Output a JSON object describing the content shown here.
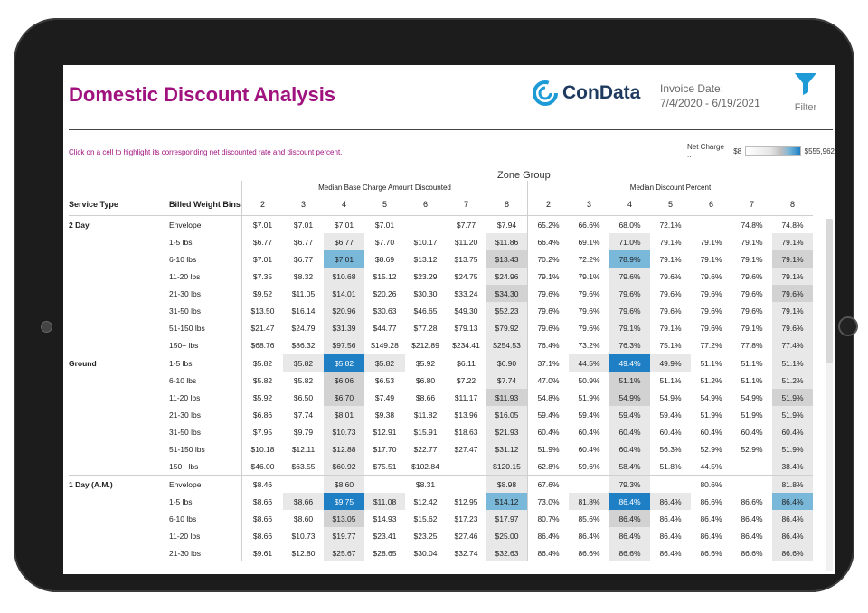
{
  "header": {
    "title": "Domestic Discount Analysis",
    "logo_text": "ConData",
    "invoice_label": "Invoice Date:",
    "invoice_range": "7/4/2020 - 6/19/2021",
    "filter_label": "Filter"
  },
  "hint": "Click on a cell to highlight its corresponding net discounted rate and discount percent.",
  "legend": {
    "label": "Net Charge ..",
    "min": "$8",
    "max": "$555,962"
  },
  "table": {
    "zone_group": "Zone Group",
    "group_base": "Median Base Charge Amount Discounted",
    "group_pct": "Median Discount Percent",
    "col_service": "Service Type",
    "col_bins": "Billed Weight Bins",
    "zones": [
      "2",
      "3",
      "4",
      "5",
      "6",
      "7",
      "8",
      "2",
      "3",
      "4",
      "5",
      "6",
      "7",
      "8"
    ],
    "rows": [
      {
        "svc": "2 Day",
        "bin": "Envelope",
        "vals": [
          "$7.01",
          "$7.01",
          "$7.01",
          "$7.01",
          "",
          "$7.77",
          "$7.94",
          "65.2%",
          "66.6%",
          "68.0%",
          "72.1%",
          "",
          "74.8%",
          "74.8%"
        ],
        "hl": [
          "",
          "",
          "",
          "",
          "",
          "",
          "",
          "",
          "",
          "",
          "",
          "",
          "",
          ""
        ]
      },
      {
        "svc": "",
        "bin": "1-5 lbs",
        "vals": [
          "$6.77",
          "$6.77",
          "$6.77",
          "$7.70",
          "$10.17",
          "$11.20",
          "$11.86",
          "66.4%",
          "69.1%",
          "71.0%",
          "79.1%",
          "79.1%",
          "79.1%",
          "79.1%"
        ],
        "hl": [
          "",
          "",
          "l",
          "",
          "",
          "",
          "l",
          "",
          "",
          "l",
          "",
          "",
          "",
          "l"
        ]
      },
      {
        "svc": "",
        "bin": "6-10 lbs",
        "vals": [
          "$7.01",
          "$6.77",
          "$7.01",
          "$8.69",
          "$13.12",
          "$13.75",
          "$13.43",
          "70.2%",
          "72.2%",
          "78.9%",
          "79.1%",
          "79.1%",
          "79.1%",
          "79.1%"
        ],
        "hl": [
          "",
          "",
          "b1",
          "",
          "",
          "",
          "m",
          "",
          "",
          "b1",
          "",
          "",
          "",
          "m"
        ]
      },
      {
        "svc": "",
        "bin": "11-20 lbs",
        "vals": [
          "$7.35",
          "$8.32",
          "$10.68",
          "$15.12",
          "$23.29",
          "$24.75",
          "$24.96",
          "79.1%",
          "79.1%",
          "79.6%",
          "79.6%",
          "79.6%",
          "79.6%",
          "79.1%"
        ],
        "hl": [
          "",
          "",
          "l",
          "",
          "",
          "",
          "l",
          "",
          "",
          "l",
          "",
          "",
          "",
          "l"
        ]
      },
      {
        "svc": "",
        "bin": "21-30 lbs",
        "vals": [
          "$9.52",
          "$11.05",
          "$14.01",
          "$20.26",
          "$30.30",
          "$33.24",
          "$34.30",
          "79.6%",
          "79.6%",
          "79.6%",
          "79.6%",
          "79.6%",
          "79.6%",
          "79.6%"
        ],
        "hl": [
          "",
          "",
          "l",
          "",
          "",
          "",
          "m",
          "",
          "",
          "l",
          "",
          "",
          "",
          "m"
        ]
      },
      {
        "svc": "",
        "bin": "31-50 lbs",
        "vals": [
          "$13.50",
          "$16.14",
          "$20.96",
          "$30.63",
          "$46.65",
          "$49.30",
          "$52.23",
          "79.6%",
          "79.6%",
          "79.6%",
          "79.6%",
          "79.6%",
          "79.6%",
          "79.1%"
        ],
        "hl": [
          "",
          "",
          "l",
          "",
          "",
          "",
          "l",
          "",
          "",
          "l",
          "",
          "",
          "",
          "l"
        ]
      },
      {
        "svc": "",
        "bin": "51-150 lbs",
        "vals": [
          "$21.47",
          "$24.79",
          "$31.39",
          "$44.77",
          "$77.28",
          "$79.13",
          "$79.92",
          "79.6%",
          "79.6%",
          "79.1%",
          "79.1%",
          "79.6%",
          "79.1%",
          "79.6%"
        ],
        "hl": [
          "",
          "",
          "l",
          "",
          "",
          "",
          "l",
          "",
          "",
          "l",
          "",
          "",
          "",
          "l"
        ]
      },
      {
        "svc": "",
        "bin": "150+ lbs",
        "vals": [
          "$68.76",
          "$86.32",
          "$97.56",
          "$149.28",
          "$212.89",
          "$234.41",
          "$254.53",
          "76.4%",
          "73.2%",
          "76.3%",
          "75.1%",
          "77.2%",
          "77.8%",
          "77.4%"
        ],
        "hl": [
          "",
          "",
          "l",
          "",
          "",
          "",
          "l",
          "",
          "",
          "l",
          "",
          "",
          "",
          "l"
        ]
      },
      {
        "svc": "Ground",
        "bin": "1-5 lbs",
        "vals": [
          "$5.82",
          "$5.82",
          "$5.82",
          "$5.82",
          "$5.92",
          "$6.11",
          "$6.90",
          "37.1%",
          "44.5%",
          "49.4%",
          "49.9%",
          "51.1%",
          "51.1%",
          "51.1%"
        ],
        "hl": [
          "",
          "l",
          "b2",
          "l",
          "",
          "",
          "l",
          "",
          "l",
          "b2",
          "l",
          "",
          "",
          "l"
        ]
      },
      {
        "svc": "",
        "bin": "6-10 lbs",
        "vals": [
          "$5.82",
          "$5.82",
          "$6.06",
          "$6.53",
          "$6.80",
          "$7.22",
          "$7.74",
          "47.0%",
          "50.9%",
          "51.1%",
          "51.1%",
          "51.2%",
          "51.1%",
          "51.2%"
        ],
        "hl": [
          "",
          "",
          "m",
          "",
          "",
          "",
          "l",
          "",
          "",
          "m",
          "",
          "",
          "",
          "l"
        ]
      },
      {
        "svc": "",
        "bin": "11-20 lbs",
        "vals": [
          "$5.92",
          "$6.50",
          "$6.70",
          "$7.49",
          "$8.66",
          "$11.17",
          "$11.93",
          "54.8%",
          "51.9%",
          "54.9%",
          "54.9%",
          "54.9%",
          "54.9%",
          "51.9%"
        ],
        "hl": [
          "",
          "",
          "m",
          "",
          "",
          "",
          "m",
          "",
          "",
          "m",
          "",
          "",
          "",
          "m"
        ]
      },
      {
        "svc": "",
        "bin": "21-30 lbs",
        "vals": [
          "$6.86",
          "$7.74",
          "$8.01",
          "$9.38",
          "$11.82",
          "$13.96",
          "$16.05",
          "59.4%",
          "59.4%",
          "59.4%",
          "59.4%",
          "51.9%",
          "51.9%",
          "51.9%"
        ],
        "hl": [
          "",
          "",
          "l",
          "",
          "",
          "",
          "l",
          "",
          "",
          "l",
          "",
          "",
          "",
          "l"
        ]
      },
      {
        "svc": "",
        "bin": "31-50 lbs",
        "vals": [
          "$7.95",
          "$9.79",
          "$10.73",
          "$12.91",
          "$15.91",
          "$18.63",
          "$21.93",
          "60.4%",
          "60.4%",
          "60.4%",
          "60.4%",
          "60.4%",
          "60.4%",
          "60.4%"
        ],
        "hl": [
          "",
          "",
          "l",
          "",
          "",
          "",
          "l",
          "",
          "",
          "l",
          "",
          "",
          "",
          "l"
        ]
      },
      {
        "svc": "",
        "bin": "51-150 lbs",
        "vals": [
          "$10.18",
          "$12.11",
          "$12.88",
          "$17.70",
          "$22.77",
          "$27.47",
          "$31.12",
          "51.9%",
          "60.4%",
          "60.4%",
          "56.3%",
          "52.9%",
          "52.9%",
          "51.9%"
        ],
        "hl": [
          "",
          "",
          "l",
          "",
          "",
          "",
          "l",
          "",
          "",
          "l",
          "",
          "",
          "",
          "l"
        ]
      },
      {
        "svc": "",
        "bin": "150+ lbs",
        "vals": [
          "$46.00",
          "$63.55",
          "$60.92",
          "$75.51",
          "$102.84",
          "",
          "$120.15",
          "62.8%",
          "59.6%",
          "58.4%",
          "51.8%",
          "44.5%",
          "",
          "38.4%"
        ],
        "hl": [
          "",
          "",
          "l",
          "",
          "",
          "",
          "l",
          "",
          "",
          "l",
          "",
          "",
          "",
          "l"
        ]
      },
      {
        "svc": "1 Day (A.M.)",
        "bin": "Envelope",
        "vals": [
          "$8.46",
          "",
          "$8.60",
          "",
          "$8.31",
          "",
          "$8.98",
          "67.6%",
          "",
          "79.3%",
          "",
          "80.6%",
          "",
          "81.8%"
        ],
        "hl": [
          "",
          "",
          "l",
          "",
          "",
          "",
          "l",
          "",
          "",
          "l",
          "",
          "",
          "",
          "l"
        ]
      },
      {
        "svc": "",
        "bin": "1-5 lbs",
        "vals": [
          "$8.66",
          "$8.66",
          "$9.75",
          "$11.08",
          "$12.42",
          "$12.95",
          "$14.12",
          "73.0%",
          "81.8%",
          "86.4%",
          "86.4%",
          "86.6%",
          "86.6%",
          "86.4%"
        ],
        "hl": [
          "",
          "l",
          "b2",
          "l",
          "",
          "",
          "b1",
          "",
          "l",
          "b2",
          "l",
          "",
          "",
          "b1"
        ]
      },
      {
        "svc": "",
        "bin": "6-10 lbs",
        "vals": [
          "$8.66",
          "$8.60",
          "$13.05",
          "$14.93",
          "$15.62",
          "$17.23",
          "$17.97",
          "80.7%",
          "85.6%",
          "86.4%",
          "86.4%",
          "86.4%",
          "86.4%",
          "86.4%"
        ],
        "hl": [
          "",
          "",
          "m",
          "",
          "",
          "",
          "l",
          "",
          "",
          "m",
          "",
          "",
          "",
          "l"
        ]
      },
      {
        "svc": "",
        "bin": "11-20 lbs",
        "vals": [
          "$8.66",
          "$10.73",
          "$19.77",
          "$23.41",
          "$23.25",
          "$27.46",
          "$25.00",
          "86.4%",
          "86.4%",
          "86.4%",
          "86.4%",
          "86.4%",
          "86.4%",
          "86.4%"
        ],
        "hl": [
          "",
          "",
          "l",
          "",
          "",
          "",
          "l",
          "",
          "",
          "l",
          "",
          "",
          "",
          "l"
        ]
      },
      {
        "svc": "",
        "bin": "21-30 lbs",
        "vals": [
          "$9.61",
          "$12.80",
          "$25.67",
          "$28.65",
          "$30.04",
          "$32.74",
          "$32.63",
          "86.4%",
          "86.6%",
          "86.6%",
          "86.4%",
          "86.6%",
          "86.6%",
          "86.6%"
        ],
        "hl": [
          "",
          "",
          "l",
          "",
          "",
          "",
          "l",
          "",
          "",
          "l",
          "",
          "",
          "",
          "l"
        ]
      }
    ]
  }
}
